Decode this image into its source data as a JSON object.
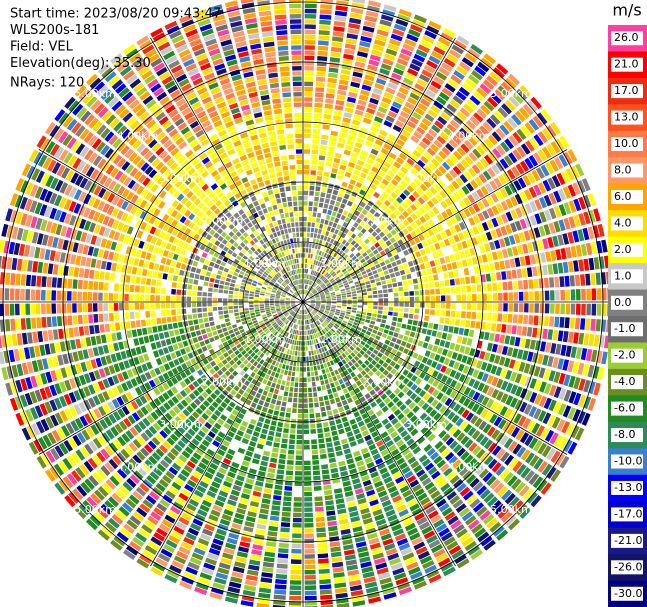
{
  "chart_data": {
    "type": "ppi",
    "annotations": [
      "Start time: 2023/08/20 09:43:47",
      "WLS200s-181",
      "Field: VEL",
      "Elevation(deg): 35.30",
      "NRays: 120"
    ],
    "range_ring_labels": [
      "1.00km",
      "2.00km",
      "3.00km",
      "4.00km",
      "5.00km"
    ],
    "colorbar": {
      "label": "m/s",
      "ticks": [
        {
          "value": 26,
          "label": "26.0"
        },
        {
          "value": 21,
          "label": "21.0"
        },
        {
          "value": 17,
          "label": "17.0"
        },
        {
          "value": 13,
          "label": "13.0"
        },
        {
          "value": 10,
          "label": "10.0"
        },
        {
          "value": 8,
          "label": "8.0"
        },
        {
          "value": 6,
          "label": "6.0"
        },
        {
          "value": 4,
          "label": "4.0"
        },
        {
          "value": 2,
          "label": "2.0"
        },
        {
          "value": 1,
          "label": "1.0"
        },
        {
          "value": 0,
          "label": "0.0"
        },
        {
          "value": -1,
          "label": "-1.0"
        },
        {
          "value": -2,
          "label": "-2.0"
        },
        {
          "value": -4,
          "label": "-4.0"
        },
        {
          "value": -6,
          "label": "-6.0"
        },
        {
          "value": -8,
          "label": "-8.0"
        },
        {
          "value": -10,
          "label": "-10.0"
        },
        {
          "value": -13,
          "label": "-13.0"
        },
        {
          "value": -17,
          "label": "-17.0"
        },
        {
          "value": -21,
          "label": "-21.0"
        },
        {
          "value": -26,
          "label": "-26.0"
        },
        {
          "value": -30,
          "label": "-30.0"
        }
      ],
      "colors": [
        "#ff3fa0",
        "#ff0000",
        "#ee2a10",
        "#ff5220",
        "#ff7a45",
        "#ff9866",
        "#ffa500",
        "#ffdc00",
        "#ffff00",
        "#c8c8c8",
        "#808080",
        "#6e6e6e",
        "#9acd32",
        "#6b8e23",
        "#228b22",
        "#2e8b57",
        "#3a80d0",
        "#0000ff",
        "#0000cd",
        "#1a1a8c",
        "#141466",
        "#000080"
      ]
    }
  }
}
